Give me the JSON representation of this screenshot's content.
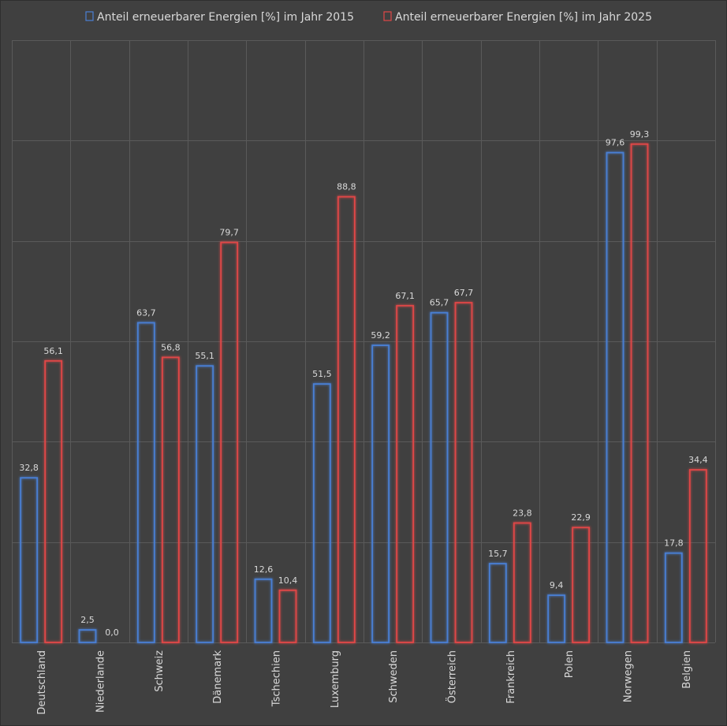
{
  "chart_data": {
    "type": "bar",
    "title": "",
    "xlabel": "",
    "ylabel": "",
    "ylim": [
      0,
      120
    ],
    "grid": true,
    "legend_position": "top",
    "categories": [
      "Deutschland",
      "Niederlande",
      "Schweiz",
      "Dänemark",
      "Tschechien",
      "Luxemburg",
      "Schweden",
      "Österreich",
      "Frankreich",
      "Polen",
      "Norwegen",
      "Belgien"
    ],
    "series": [
      {
        "name": "Anteil erneuerbarer Energien [%] im Jahr 2015",
        "color": "#4a7fd4",
        "values": [
          32.8,
          2.5,
          63.7,
          55.1,
          12.6,
          51.5,
          59.2,
          65.7,
          15.7,
          9.4,
          97.6,
          17.8
        ],
        "labels": [
          "32,8",
          "2,5",
          "63,7",
          "55,1",
          "12,6",
          "51,5",
          "59,2",
          "65,7",
          "15,7",
          "9,4",
          "97,6",
          "17,8"
        ]
      },
      {
        "name": "Anteil erneuerbarer Energien [%] im Jahr 2025",
        "color": "#e04646",
        "values": [
          56.1,
          0.0,
          56.8,
          79.7,
          10.4,
          88.8,
          67.1,
          67.7,
          23.8,
          22.9,
          99.3,
          34.4
        ],
        "labels": [
          "56,1",
          "0,0",
          "56,8",
          "79,7",
          "10,4",
          "88,8",
          "67,1",
          "67,7",
          "23,8",
          "22,9",
          "99,3",
          "34,4"
        ]
      }
    ]
  }
}
